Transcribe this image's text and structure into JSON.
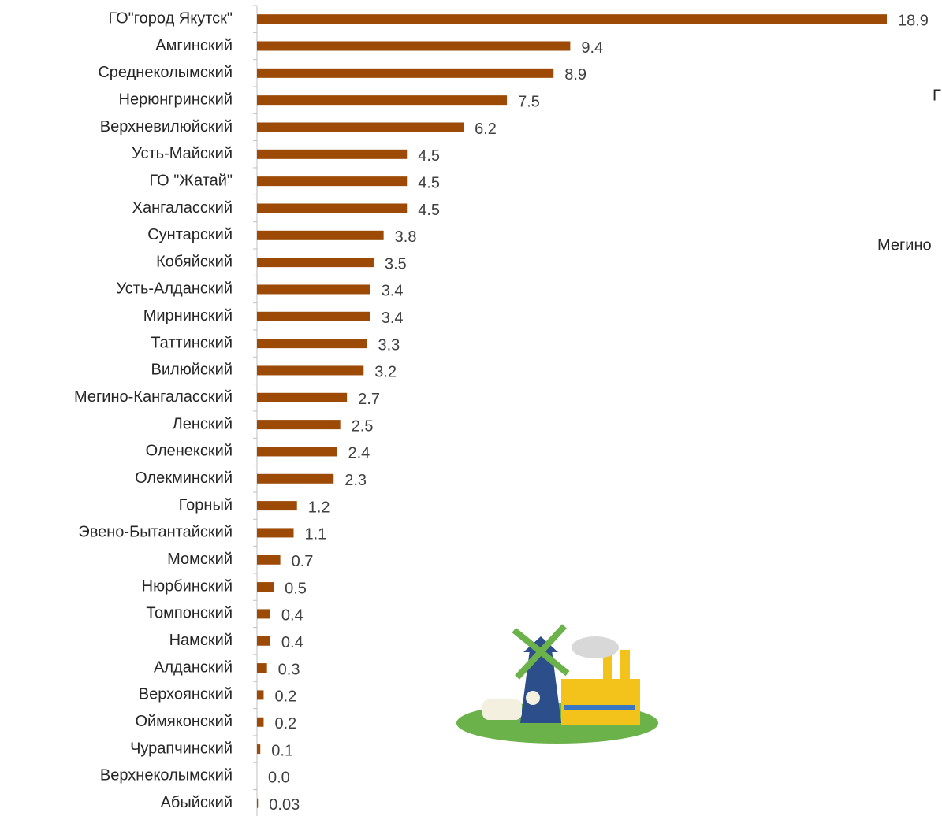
{
  "chart_data": {
    "type": "barh",
    "categories": [
      "ГО\"город Якутск\"",
      "Амгинский",
      "Среднеколымский",
      "Нерюнгринский",
      "Верхневилюйский",
      "Усть-Майский",
      "ГО \"Жатай\"",
      "Хангаласский",
      "Сунтарский",
      "Кобяйский",
      "Усть-Алданский",
      "Мирнинский",
      "Таттинский",
      "Вилюйский",
      "Мегино-Кангаласский",
      "Ленский",
      "Оленекский",
      "Олекминский",
      "Горный",
      "Эвено-Бытантайский",
      "Момский",
      "Нюрбинский",
      "Томпонский",
      "Намский",
      "Алданский",
      "Верхоянский",
      "Оймяконский",
      "Чурапчинский",
      "Верхнеколымский",
      "Абыйский"
    ],
    "values": [
      18.9,
      9.4,
      8.9,
      7.5,
      6.2,
      4.5,
      4.5,
      4.5,
      3.8,
      3.5,
      3.4,
      3.4,
      3.3,
      3.2,
      2.7,
      2.5,
      2.4,
      2.3,
      1.2,
      1.1,
      0.7,
      0.5,
      0.4,
      0.4,
      0.3,
      0.2,
      0.2,
      0.1,
      0,
      0.03
    ],
    "value_labels": [
      "18.9",
      "9.4",
      "8.9",
      "7.5",
      "6.2",
      "4.5",
      "4.5",
      "4.5",
      "3.8",
      "3.5",
      "3.4",
      "3.4",
      "3.3",
      "3.2",
      "2.7",
      "2.5",
      "2.4",
      "2.3",
      "1.2",
      "1.1",
      "0.7",
      "0.5",
      "0.4",
      "0.4",
      "0.3",
      "0.2",
      "0.2",
      "0.1",
      "0.0",
      "0.03"
    ],
    "color": "#9c4a06",
    "xlim": [
      0,
      18.9
    ],
    "annotations": [
      "Г",
      "Мегино"
    ]
  }
}
